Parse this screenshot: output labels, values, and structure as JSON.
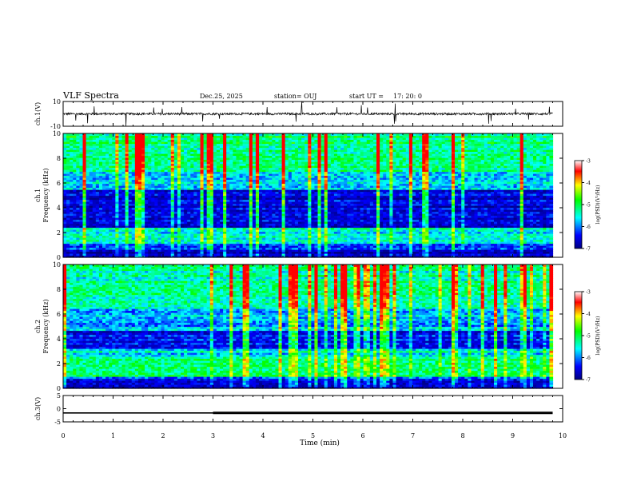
{
  "chart_data": {
    "type": "heatmap",
    "title": "VLF Spectra",
    "date": "Dec.25, 2025",
    "station": "station= OUJ",
    "start_label": "start UT =",
    "start_time": "17: 20: 0",
    "xlabel": "Time (min)",
    "xlim": [
      0,
      10
    ],
    "xticks": [
      "0",
      "1",
      "2",
      "3",
      "4",
      "5",
      "6",
      "7",
      "8",
      "9",
      "10"
    ],
    "panels": [
      {
        "id": "ch1-waveform",
        "ylabel": "ch.1(V)",
        "ylim": [
          -10,
          10
        ],
        "yticks": [
          "10",
          "-10"
        ],
        "baseline": 0
      },
      {
        "id": "ch1-spectrogram",
        "ylabel": "ch.1",
        "ylabel2": "Frequency (kHz)",
        "ylim": [
          0,
          10
        ],
        "yticks": [
          "0",
          "2",
          "4",
          "6",
          "8",
          "10"
        ]
      },
      {
        "id": "ch2-spectrogram",
        "ylabel": "ch.2",
        "ylabel2": "Frequency (kHz)",
        "ylim": [
          0,
          10
        ],
        "yticks": [
          "0",
          "2",
          "4",
          "6",
          "8",
          "10"
        ]
      },
      {
        "id": "ch3-waveform",
        "ylabel": "ch.3(V)",
        "ylim": [
          -5,
          5
        ],
        "yticks": [
          "5",
          "0",
          "-5"
        ],
        "segments": [
          {
            "x": [
              0,
              3.0
            ],
            "y": -1.6
          },
          {
            "x": [
              3.0,
              9.8
            ],
            "y": -1.6
          }
        ]
      }
    ],
    "colorbar": {
      "label": "log(PSD)(V²/Hz)",
      "range": [
        -7,
        -3
      ],
      "ticks": [
        "-3",
        "-4",
        "-5",
        "-6",
        "-7"
      ],
      "colors": [
        "#000080",
        "#0000ff",
        "#00ffff",
        "#00ff00",
        "#ffff00",
        "#ff0000",
        "#ffffff"
      ]
    }
  }
}
